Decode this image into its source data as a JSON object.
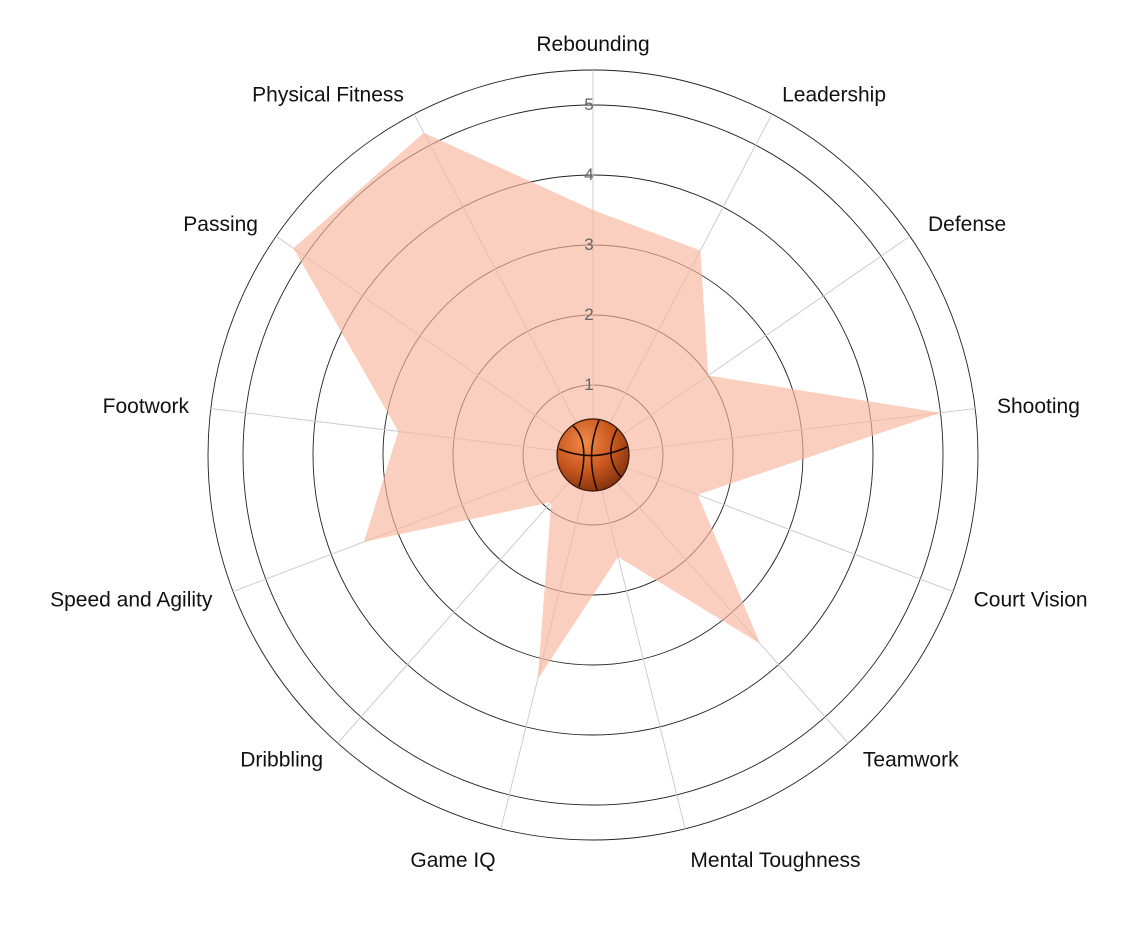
{
  "chart_data": {
    "type": "radar",
    "title": "",
    "categories": [
      "Rebounding",
      "Leadership",
      "Defense",
      "Shooting",
      "Court Vision",
      "Teamwork",
      "Mental Toughness",
      "Game IQ",
      "Dribbling",
      "Speed and Agility",
      "Footwork",
      "Passing",
      "Physical Fitness"
    ],
    "series": [
      {
        "values": [
          3.5,
          3.3,
          2.0,
          5.0,
          1.6,
          3.6,
          1.5,
          3.3,
          0.9,
          3.5,
          2.8,
          5.2,
          5.2
        ],
        "color": "#f7b69c",
        "opacity": 0.65
      }
    ],
    "rlim": [
      0,
      5.5
    ],
    "rticks": [
      1,
      2,
      3,
      4,
      5
    ],
    "grid": true,
    "legend": "none",
    "center_icon": "basketball-icon"
  }
}
